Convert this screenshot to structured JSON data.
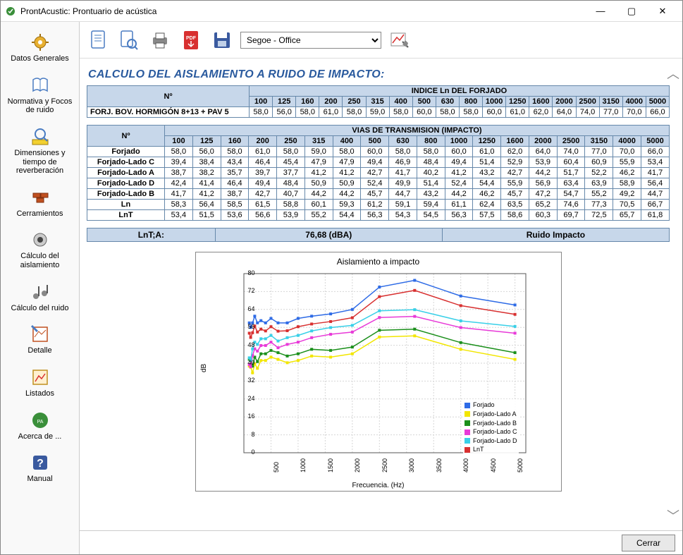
{
  "window": {
    "title": "ProntAcustic: Prontuario de acústica",
    "min": "—",
    "max": "▢",
    "close": "✕"
  },
  "sidebar": {
    "items": [
      {
        "label": "Datos Generales",
        "icon": "gear"
      },
      {
        "label": "Normativa y Focos de ruido",
        "icon": "book"
      },
      {
        "label": "Dimensiones y tiempo de reverberación",
        "icon": "ruler"
      },
      {
        "label": "Cerramientos",
        "icon": "bricks"
      },
      {
        "label": "Cálculo del aislamiento",
        "icon": "speaker"
      },
      {
        "label": "Cálculo del ruido",
        "icon": "notes"
      },
      {
        "label": "Detalle",
        "icon": "detail"
      },
      {
        "label": "Listados",
        "icon": "list"
      },
      {
        "label": "Acerca de ...",
        "icon": "about"
      },
      {
        "label": "Manual",
        "icon": "help"
      }
    ]
  },
  "toolbar": {
    "font_selected": "Segoe - Office",
    "buttons": [
      "report",
      "preview",
      "print",
      "pdf",
      "save",
      "chart-tool"
    ]
  },
  "section_title": "CALCULO DEL AISLAMIENTO A RUIDO DE IMPACTO:",
  "freqs": [
    "100",
    "125",
    "160",
    "200",
    "250",
    "315",
    "400",
    "500",
    "630",
    "800",
    "1000",
    "1250",
    "1600",
    "2000",
    "2500",
    "3150",
    "4000",
    "5000"
  ],
  "table1": {
    "header_num": "Nº",
    "header_index": "INDICE Ln DEL FORJADO",
    "row_label": "FORJ. BOV. HORMIGÓN 8+13 + PAV 5",
    "values": [
      "58,0",
      "56,0",
      "58,0",
      "61,0",
      "58,0",
      "59,0",
      "58,0",
      "60,0",
      "58,0",
      "58,0",
      "60,0",
      "61,0",
      "62,0",
      "64,0",
      "74,0",
      "77,0",
      "70,0",
      "66,0"
    ]
  },
  "table2": {
    "header_num": "Nº",
    "header_vias": "VIAS DE TRANSMISION (IMPACTO)",
    "rows": [
      {
        "label": "Forjado",
        "v": [
          "58,0",
          "56,0",
          "58,0",
          "61,0",
          "58,0",
          "59,0",
          "58,0",
          "60,0",
          "58,0",
          "58,0",
          "60,0",
          "61,0",
          "62,0",
          "64,0",
          "74,0",
          "77,0",
          "70,0",
          "66,0"
        ]
      },
      {
        "label": "Forjado-Lado C",
        "v": [
          "39,4",
          "38,4",
          "43,4",
          "46,4",
          "45,4",
          "47,9",
          "47,9",
          "49,4",
          "46,9",
          "48,4",
          "49,4",
          "51,4",
          "52,9",
          "53,9",
          "60,4",
          "60,9",
          "55,9",
          "53,4"
        ]
      },
      {
        "label": "Forjado-Lado A",
        "v": [
          "38,7",
          "38,2",
          "35,7",
          "39,7",
          "37,7",
          "41,2",
          "41,2",
          "42,7",
          "41,7",
          "40,2",
          "41,2",
          "43,2",
          "42,7",
          "44,2",
          "51,7",
          "52,2",
          "46,2",
          "41,7"
        ]
      },
      {
        "label": "Forjado-Lado D",
        "v": [
          "42,4",
          "41,4",
          "46,4",
          "49,4",
          "48,4",
          "50,9",
          "50,9",
          "52,4",
          "49,9",
          "51,4",
          "52,4",
          "54,4",
          "55,9",
          "56,9",
          "63,4",
          "63,9",
          "58,9",
          "56,4"
        ]
      },
      {
        "label": "Forjado-Lado B",
        "v": [
          "41,7",
          "41,2",
          "38,7",
          "42,7",
          "40,7",
          "44,2",
          "44,2",
          "45,7",
          "44,7",
          "43,2",
          "44,2",
          "46,2",
          "45,7",
          "47,2",
          "54,7",
          "55,2",
          "49,2",
          "44,7"
        ]
      },
      {
        "label": "Ln",
        "v": [
          "58,3",
          "56,4",
          "58,5",
          "61,5",
          "58,8",
          "60,1",
          "59,3",
          "61,2",
          "59,1",
          "59,4",
          "61,1",
          "62,4",
          "63,5",
          "65,2",
          "74,6",
          "77,3",
          "70,5",
          "66,7"
        ]
      },
      {
        "label": "LnT",
        "v": [
          "53,4",
          "51,5",
          "53,6",
          "56,6",
          "53,9",
          "55,2",
          "54,4",
          "56,3",
          "54,3",
          "54,5",
          "56,3",
          "57,5",
          "58,6",
          "60,3",
          "69,7",
          "72,5",
          "65,7",
          "61,8"
        ]
      }
    ]
  },
  "summary": {
    "k1": "LnT;A:",
    "v1": "76,68 (dBA)",
    "v2": "Ruido Impacto"
  },
  "chart": {
    "title": "Aislamiento a impacto",
    "ylabel": "dB",
    "xlabel": "Frecuencia. (Hz)",
    "ylim": [
      0,
      80
    ],
    "ytick_step": 8,
    "xticks": [
      500,
      1000,
      1500,
      2000,
      2500,
      3000,
      3500,
      4000,
      4500,
      5000
    ],
    "xlim": [
      0,
      5200
    ],
    "background": "#ffffff",
    "grid_color": "#d6d6d6",
    "freq_x": [
      100,
      125,
      160,
      200,
      250,
      315,
      400,
      500,
      630,
      800,
      1000,
      1250,
      1600,
      2000,
      2500,
      3150,
      4000,
      5000
    ],
    "series": [
      {
        "name": "Forjado",
        "color": "#2e6be6",
        "marker": "square",
        "y": [
          58.0,
          56.0,
          58.0,
          61.0,
          58.0,
          59.0,
          58.0,
          60.0,
          58.0,
          58.0,
          60.0,
          61.0,
          62.0,
          64.0,
          74.0,
          77.0,
          70.0,
          66.0
        ]
      },
      {
        "name": "Forjado-Lado A",
        "color": "#f2e600",
        "marker": "circle",
        "y": [
          38.7,
          38.2,
          35.7,
          39.7,
          37.7,
          41.2,
          41.2,
          42.7,
          41.7,
          40.2,
          41.2,
          43.2,
          42.7,
          44.2,
          51.7,
          52.2,
          46.2,
          41.7
        ]
      },
      {
        "name": "Forjado-Lado B",
        "color": "#1b8f1b",
        "marker": "diamond",
        "y": [
          41.7,
          41.2,
          38.7,
          42.7,
          40.7,
          44.2,
          44.2,
          45.7,
          44.7,
          43.2,
          44.2,
          46.2,
          45.7,
          47.2,
          54.7,
          55.2,
          49.2,
          44.7
        ]
      },
      {
        "name": "Forjado-Lado C",
        "color": "#e83ad8",
        "marker": "triangle",
        "y": [
          39.4,
          38.4,
          43.4,
          46.4,
          45.4,
          47.9,
          47.9,
          49.4,
          46.9,
          48.4,
          49.4,
          51.4,
          52.9,
          53.9,
          60.4,
          60.9,
          55.9,
          53.4
        ]
      },
      {
        "name": "Forjado-Lado D",
        "color": "#39d0e8",
        "marker": "x",
        "y": [
          42.4,
          41.4,
          46.4,
          49.4,
          48.4,
          50.9,
          50.9,
          52.4,
          49.9,
          51.4,
          52.4,
          54.4,
          55.9,
          56.9,
          63.4,
          63.9,
          58.9,
          56.4
        ]
      },
      {
        "name": "LnT",
        "color": "#d83030",
        "marker": "plus",
        "y": [
          53.4,
          51.5,
          53.6,
          56.6,
          53.9,
          55.2,
          54.4,
          56.3,
          54.3,
          54.5,
          56.3,
          57.5,
          58.6,
          60.3,
          69.7,
          72.5,
          65.7,
          61.8
        ]
      }
    ]
  },
  "footer": {
    "close": "Cerrar"
  }
}
